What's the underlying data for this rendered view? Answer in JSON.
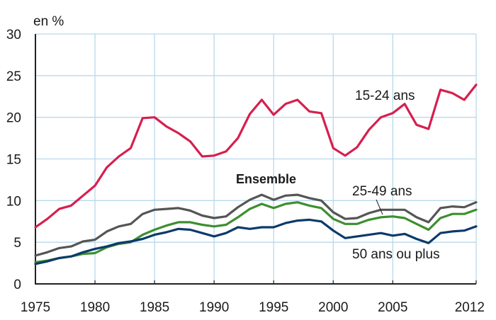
{
  "chart_data": {
    "type": "line",
    "title": "",
    "ylabel": "en %",
    "xlabel": "",
    "xlim": [
      1975,
      2012
    ],
    "ylim": [
      0,
      30
    ],
    "grid": true,
    "x_ticks": [
      1975,
      1980,
      1985,
      1990,
      1995,
      2000,
      2005,
      2012
    ],
    "x_tick_labels": [
      "1975",
      "1980",
      "1985",
      "1990",
      "1995",
      "2000",
      "2005",
      "2012"
    ],
    "y_ticks": [
      0,
      5,
      10,
      15,
      20,
      25,
      30
    ],
    "y_tick_labels": [
      "0",
      "5",
      "10",
      "15",
      "20",
      "25",
      "30"
    ],
    "x": [
      1975,
      1976,
      1977,
      1978,
      1979,
      1980,
      1981,
      1982,
      1983,
      1984,
      1985,
      1986,
      1987,
      1988,
      1989,
      1990,
      1991,
      1992,
      1993,
      1994,
      1995,
      1996,
      1997,
      1998,
      1999,
      2000,
      2001,
      2002,
      2003,
      2004,
      2005,
      2006,
      2007,
      2008,
      2009,
      2010,
      2011,
      2012
    ],
    "series": [
      {
        "name": "15-24 ans",
        "color": "#d61f4e",
        "values": [
          6.8,
          7.8,
          9.0,
          9.4,
          10.6,
          11.8,
          14.0,
          15.3,
          16.3,
          19.9,
          20.0,
          18.9,
          18.1,
          17.1,
          15.3,
          15.4,
          15.9,
          17.5,
          20.4,
          22.1,
          20.3,
          21.6,
          22.1,
          20.7,
          20.5,
          16.3,
          15.4,
          16.4,
          18.5,
          20.0,
          20.5,
          21.6,
          19.1,
          18.6,
          23.3,
          22.9,
          22.1,
          23.9
        ]
      },
      {
        "name": "Ensemble",
        "color": "#555555",
        "values": [
          3.4,
          3.8,
          4.3,
          4.5,
          5.1,
          5.3,
          6.3,
          6.9,
          7.2,
          8.4,
          8.9,
          9.0,
          9.1,
          8.8,
          8.2,
          7.9,
          8.1,
          9.2,
          10.1,
          10.7,
          10.1,
          10.6,
          10.7,
          10.3,
          10.0,
          8.6,
          7.8,
          7.9,
          8.5,
          8.9,
          8.9,
          8.9,
          8.0,
          7.4,
          9.1,
          9.3,
          9.2,
          9.8
        ]
      },
      {
        "name": "25-49 ans",
        "color": "#3d8f2f",
        "values": [
          2.6,
          2.8,
          3.1,
          3.3,
          3.6,
          3.7,
          4.4,
          4.8,
          5.0,
          5.9,
          6.5,
          7.0,
          7.4,
          7.4,
          7.1,
          6.9,
          7.1,
          8.0,
          9.0,
          9.6,
          9.1,
          9.6,
          9.8,
          9.4,
          9.1,
          7.8,
          7.2,
          7.2,
          7.7,
          8.0,
          8.1,
          7.9,
          7.2,
          6.5,
          7.9,
          8.4,
          8.4,
          8.9
        ]
      },
      {
        "name": "50 ans ou plus",
        "color": "#0c3a6b",
        "values": [
          2.4,
          2.7,
          3.1,
          3.3,
          3.8,
          4.2,
          4.5,
          4.9,
          5.1,
          5.4,
          5.9,
          6.2,
          6.6,
          6.5,
          6.1,
          5.7,
          6.1,
          6.8,
          6.6,
          6.8,
          6.8,
          7.3,
          7.6,
          7.7,
          7.5,
          6.4,
          5.5,
          5.7,
          5.9,
          6.1,
          5.8,
          6.0,
          5.4,
          4.9,
          6.1,
          6.3,
          6.4,
          6.9
        ]
      }
    ],
    "annotations": [
      "15-24 ans",
      "Ensemble",
      "25-49 ans",
      "50 ans ou plus"
    ]
  },
  "colors": {
    "grid": "#b9d9ec",
    "axis": "#222222"
  }
}
